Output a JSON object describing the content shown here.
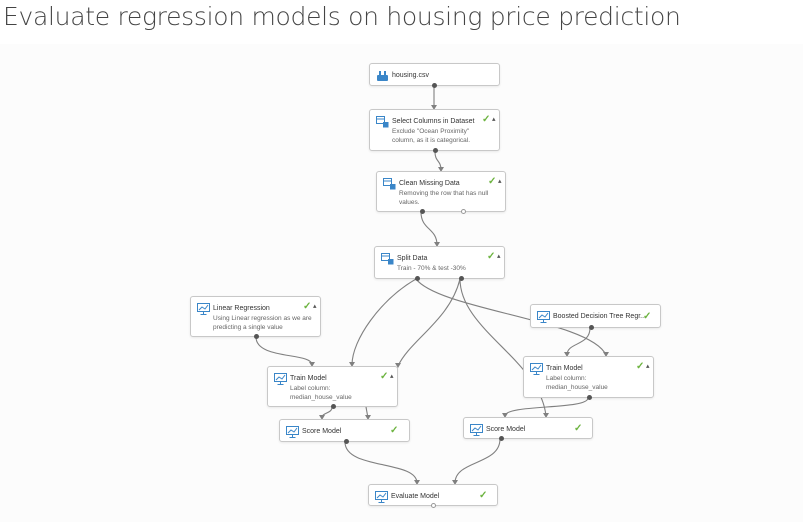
{
  "page": {
    "title": "Evaluate regression models on housing price prediction"
  },
  "nodes": {
    "housing": {
      "title": "housing.csv",
      "icon": "dataset-icon"
    },
    "select_columns": {
      "title": "Select Columns in Dataset",
      "desc": "Exclude \"Ocean Proximity\" column, as it is categorical.",
      "icon": "module-icon",
      "status": "✓",
      "caret": "▴"
    },
    "clean_missing": {
      "title": "Clean Missing Data",
      "desc": "Removing the row that has null values.",
      "icon": "module-icon",
      "status": "✓",
      "caret": "▴"
    },
    "split_data": {
      "title": "Split Data",
      "desc": "Train - 70% & test -30%",
      "icon": "module-icon",
      "status": "✓",
      "caret": "▴"
    },
    "linear_regression": {
      "title": "Linear Regression",
      "desc": "Using Linear regression as we are predicting a single value",
      "icon": "model-icon",
      "status": "✓",
      "caret": "▴"
    },
    "boosted_tree": {
      "title": "Boosted Decision Tree Regr...",
      "icon": "model-icon",
      "status": "✓"
    },
    "train_model_1": {
      "title": "Train Model",
      "desc": "Label column: median_house_value",
      "icon": "model-icon",
      "status": "✓",
      "caret": "▴"
    },
    "train_model_2": {
      "title": "Train Model",
      "desc": "Label column: median_house_value",
      "icon": "model-icon",
      "status": "✓",
      "caret": "▴"
    },
    "score_model_1": {
      "title": "Score Model",
      "icon": "model-icon",
      "status": "✓"
    },
    "score_model_2": {
      "title": "Score Model",
      "icon": "model-icon",
      "status": "✓"
    },
    "evaluate_model": {
      "title": "Evaluate Model",
      "icon": "model-icon",
      "status": "✓"
    }
  },
  "colors": {
    "success": "#6cb33f",
    "connector": "#808080",
    "module_icon": "#3a86c8"
  }
}
